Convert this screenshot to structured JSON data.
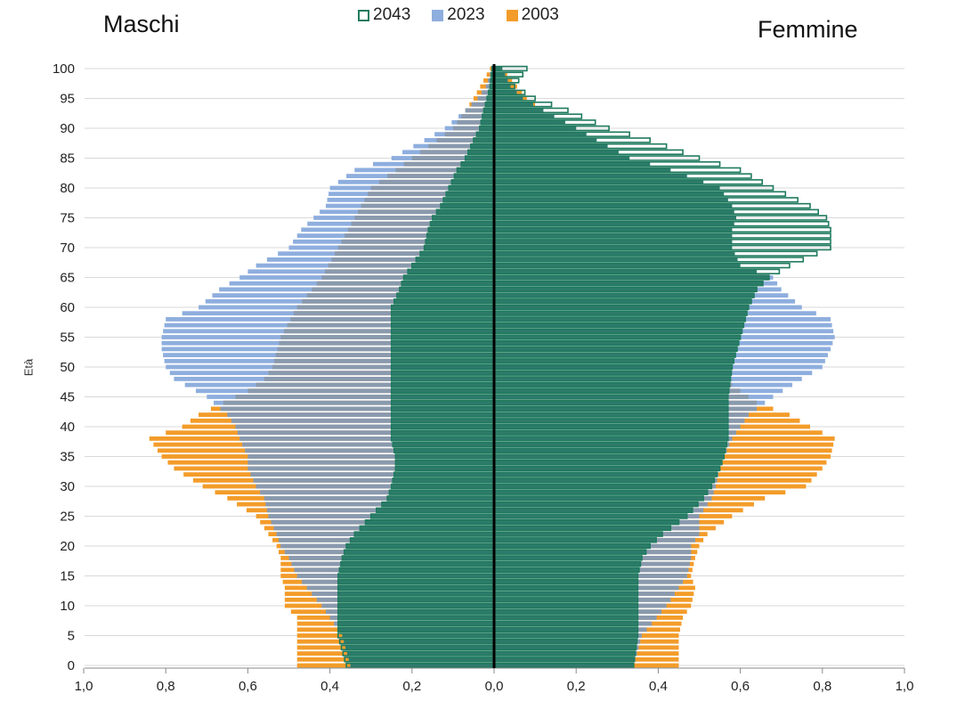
{
  "chart_data": {
    "type": "bar",
    "subtype": "population-pyramid",
    "title_left": "Maschi",
    "title_right": "Femmine",
    "ylabel": "Età",
    "xlabel": "",
    "xlim": [
      -1.0,
      1.0
    ],
    "ylim": [
      0,
      100
    ],
    "x_ticks": [
      "1,0",
      "0,8",
      "0,6",
      "0,4",
      "0,2",
      "0,0",
      "0,2",
      "0,4",
      "0,6",
      "0,8",
      "1,0"
    ],
    "y_ticks": [
      "0",
      "5",
      "10",
      "15",
      "20",
      "25",
      "30",
      "35",
      "40",
      "45",
      "50",
      "55",
      "60",
      "65",
      "70",
      "75",
      "80",
      "85",
      "90",
      "95",
      "100"
    ],
    "grid": "horizontal",
    "legend_position": "top-center",
    "colors": {
      "s2043": "#1f7a5e",
      "s2023": "#8eaede",
      "s2003": "#f39c2a",
      "overlap": "#2e7b6a",
      "axis": "#000000",
      "grid": "#d9d9d9"
    },
    "series": [
      {
        "name": "2043",
        "style": "outline",
        "males": [
          [
            0,
            0.36
          ],
          [
            5,
            0.38
          ],
          [
            10,
            0.38
          ],
          [
            15,
            0.38
          ],
          [
            18,
            0.37
          ],
          [
            20,
            0.36
          ],
          [
            22,
            0.34
          ],
          [
            25,
            0.3
          ],
          [
            28,
            0.26
          ],
          [
            30,
            0.25
          ],
          [
            33,
            0.24
          ],
          [
            35,
            0.24
          ],
          [
            38,
            0.25
          ],
          [
            40,
            0.25
          ],
          [
            45,
            0.25
          ],
          [
            50,
            0.25
          ],
          [
            55,
            0.25
          ],
          [
            60,
            0.25
          ],
          [
            63,
            0.23
          ],
          [
            65,
            0.22
          ],
          [
            67,
            0.2
          ],
          [
            70,
            0.17
          ],
          [
            73,
            0.16
          ],
          [
            75,
            0.15
          ],
          [
            77,
            0.13
          ],
          [
            80,
            0.11
          ],
          [
            83,
            0.09
          ],
          [
            85,
            0.07
          ],
          [
            88,
            0.05
          ],
          [
            90,
            0.035
          ],
          [
            93,
            0.025
          ],
          [
            95,
            0.017
          ],
          [
            97,
            0.01
          ],
          [
            100,
            0.005
          ]
        ],
        "females": [
          [
            0,
            0.34
          ],
          [
            5,
            0.35
          ],
          [
            10,
            0.35
          ],
          [
            15,
            0.35
          ],
          [
            18,
            0.36
          ],
          [
            20,
            0.38
          ],
          [
            22,
            0.41
          ],
          [
            25,
            0.47
          ],
          [
            28,
            0.51
          ],
          [
            30,
            0.53
          ],
          [
            33,
            0.55
          ],
          [
            35,
            0.56
          ],
          [
            38,
            0.57
          ],
          [
            40,
            0.57
          ],
          [
            45,
            0.57
          ],
          [
            50,
            0.58
          ],
          [
            55,
            0.6
          ],
          [
            60,
            0.62
          ],
          [
            63,
            0.64
          ],
          [
            65,
            0.67
          ],
          [
            67,
            0.72
          ],
          [
            70,
            0.82
          ],
          [
            73,
            0.82
          ],
          [
            75,
            0.81
          ],
          [
            77,
            0.77
          ],
          [
            80,
            0.68
          ],
          [
            83,
            0.6
          ],
          [
            85,
            0.5
          ],
          [
            88,
            0.38
          ],
          [
            90,
            0.28
          ],
          [
            93,
            0.18
          ],
          [
            95,
            0.1
          ],
          [
            97,
            0.05
          ],
          [
            100,
            0.08
          ]
        ]
      },
      {
        "name": "2023",
        "style": "filled",
        "males": [
          [
            0,
            0.35
          ],
          [
            5,
            0.37
          ],
          [
            10,
            0.42
          ],
          [
            15,
            0.48
          ],
          [
            18,
            0.5
          ],
          [
            20,
            0.52
          ],
          [
            22,
            0.53
          ],
          [
            25,
            0.55
          ],
          [
            28,
            0.56
          ],
          [
            30,
            0.58
          ],
          [
            33,
            0.6
          ],
          [
            35,
            0.6
          ],
          [
            38,
            0.62
          ],
          [
            40,
            0.63
          ],
          [
            42,
            0.65
          ],
          [
            45,
            0.7
          ],
          [
            48,
            0.78
          ],
          [
            50,
            0.8
          ],
          [
            53,
            0.81
          ],
          [
            55,
            0.81
          ],
          [
            58,
            0.8
          ],
          [
            60,
            0.72
          ],
          [
            63,
            0.67
          ],
          [
            65,
            0.62
          ],
          [
            67,
            0.58
          ],
          [
            70,
            0.5
          ],
          [
            73,
            0.47
          ],
          [
            75,
            0.44
          ],
          [
            77,
            0.41
          ],
          [
            80,
            0.4
          ],
          [
            83,
            0.34
          ],
          [
            85,
            0.25
          ],
          [
            88,
            0.17
          ],
          [
            90,
            0.12
          ],
          [
            93,
            0.07
          ],
          [
            95,
            0.04
          ],
          [
            97,
            0.02
          ],
          [
            100,
            0.005
          ]
        ],
        "females": [
          [
            0,
            0.34
          ],
          [
            5,
            0.36
          ],
          [
            10,
            0.42
          ],
          [
            15,
            0.47
          ],
          [
            18,
            0.48
          ],
          [
            20,
            0.48
          ],
          [
            22,
            0.5
          ],
          [
            25,
            0.5
          ],
          [
            28,
            0.53
          ],
          [
            30,
            0.54
          ],
          [
            33,
            0.55
          ],
          [
            35,
            0.56
          ],
          [
            38,
            0.58
          ],
          [
            40,
            0.6
          ],
          [
            42,
            0.62
          ],
          [
            45,
            0.68
          ],
          [
            48,
            0.75
          ],
          [
            50,
            0.8
          ],
          [
            53,
            0.82
          ],
          [
            55,
            0.83
          ],
          [
            58,
            0.82
          ],
          [
            60,
            0.75
          ],
          [
            63,
            0.7
          ],
          [
            65,
            0.68
          ],
          [
            67,
            0.6
          ],
          [
            70,
            0.58
          ],
          [
            73,
            0.58
          ],
          [
            75,
            0.59
          ],
          [
            77,
            0.58
          ],
          [
            80,
            0.55
          ],
          [
            83,
            0.43
          ],
          [
            85,
            0.33
          ],
          [
            88,
            0.25
          ],
          [
            90,
            0.2
          ],
          [
            93,
            0.12
          ],
          [
            95,
            0.07
          ],
          [
            97,
            0.04
          ],
          [
            100,
            0.02
          ]
        ]
      },
      {
        "name": "2003",
        "style": "filled",
        "males": [
          [
            0,
            0.48
          ],
          [
            5,
            0.48
          ],
          [
            8,
            0.48
          ],
          [
            10,
            0.51
          ],
          [
            13,
            0.51
          ],
          [
            15,
            0.52
          ],
          [
            18,
            0.52
          ],
          [
            20,
            0.53
          ],
          [
            22,
            0.55
          ],
          [
            25,
            0.58
          ],
          [
            28,
            0.65
          ],
          [
            30,
            0.71
          ],
          [
            33,
            0.78
          ],
          [
            35,
            0.81
          ],
          [
            38,
            0.84
          ],
          [
            40,
            0.76
          ],
          [
            42,
            0.72
          ],
          [
            44,
            0.66
          ],
          [
            46,
            0.6
          ],
          [
            48,
            0.56
          ],
          [
            50,
            0.54
          ],
          [
            55,
            0.52
          ],
          [
            60,
            0.48
          ],
          [
            65,
            0.42
          ],
          [
            70,
            0.38
          ],
          [
            75,
            0.34
          ],
          [
            80,
            0.3
          ],
          [
            85,
            0.2
          ],
          [
            90,
            0.1
          ],
          [
            95,
            0.05
          ],
          [
            100,
            0.01
          ]
        ],
        "females": [
          [
            0,
            0.45
          ],
          [
            5,
            0.45
          ],
          [
            8,
            0.46
          ],
          [
            10,
            0.48
          ],
          [
            13,
            0.49
          ],
          [
            15,
            0.48
          ],
          [
            18,
            0.49
          ],
          [
            20,
            0.5
          ],
          [
            22,
            0.52
          ],
          [
            25,
            0.58
          ],
          [
            28,
            0.66
          ],
          [
            30,
            0.76
          ],
          [
            33,
            0.8
          ],
          [
            35,
            0.82
          ],
          [
            38,
            0.83
          ],
          [
            40,
            0.77
          ],
          [
            42,
            0.72
          ],
          [
            44,
            0.64
          ],
          [
            46,
            0.6
          ],
          [
            48,
            0.56
          ],
          [
            50,
            0.54
          ],
          [
            55,
            0.52
          ],
          [
            60,
            0.5
          ],
          [
            65,
            0.46
          ],
          [
            70,
            0.44
          ],
          [
            75,
            0.46
          ],
          [
            80,
            0.42
          ],
          [
            85,
            0.3
          ],
          [
            90,
            0.18
          ],
          [
            95,
            0.08
          ],
          [
            100,
            0.02
          ]
        ]
      }
    ]
  }
}
